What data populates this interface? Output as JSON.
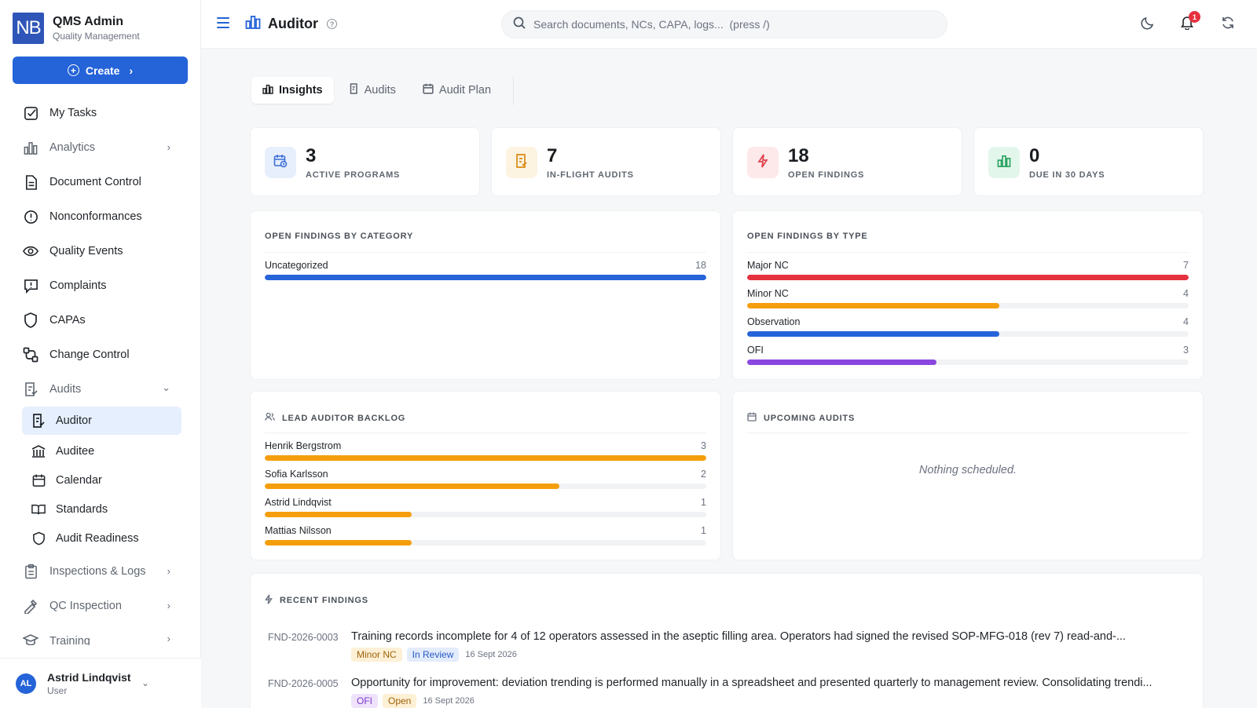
{
  "brand": {
    "logo_text": "NB",
    "title": "QMS Admin",
    "subtitle": "Quality Management"
  },
  "create_label": "Create",
  "sidebar": {
    "items": [
      {
        "label": "My Tasks"
      },
      {
        "label": "Analytics"
      },
      {
        "label": "Document Control"
      },
      {
        "label": "Nonconformances"
      },
      {
        "label": "Quality Events"
      },
      {
        "label": "Complaints"
      },
      {
        "label": "CAPAs"
      },
      {
        "label": "Change Control"
      },
      {
        "label": "Audits"
      }
    ],
    "audit_sub": [
      {
        "label": "Auditor"
      },
      {
        "label": "Auditee"
      },
      {
        "label": "Calendar"
      },
      {
        "label": "Standards"
      },
      {
        "label": "Audit Readiness"
      }
    ],
    "after_items": [
      {
        "label": "Inspections & Logs"
      },
      {
        "label": "QC Inspection"
      },
      {
        "label": "Training"
      }
    ]
  },
  "user": {
    "initials": "AL",
    "name": "Astrid Lindqvist",
    "role": "User"
  },
  "header": {
    "title": "Auditor",
    "search_placeholder": "Search documents, NCs, CAPA, logs...  (press /)",
    "notification_count": "1"
  },
  "tabs": [
    {
      "label": "Insights"
    },
    {
      "label": "Audits"
    },
    {
      "label": "Audit Plan"
    }
  ],
  "stats": [
    {
      "value": "3",
      "label": "ACTIVE PROGRAMS",
      "color": "#3b6fd8",
      "bg": "#e8effc"
    },
    {
      "value": "7",
      "label": "IN-FLIGHT AUDITS",
      "color": "#d98a12",
      "bg": "#fdf3e1"
    },
    {
      "value": "18",
      "label": "OPEN FINDINGS",
      "color": "#e0404a",
      "bg": "#fde8ea"
    },
    {
      "value": "0",
      "label": "DUE IN 30 DAYS",
      "color": "#23a15a",
      "bg": "#e3f6ec"
    }
  ],
  "by_category": {
    "title": "OPEN FINDINGS BY CATEGORY",
    "rows": [
      {
        "label": "Uncategorized",
        "value": "18",
        "fraction": 1.0,
        "color": "#2563d9"
      }
    ]
  },
  "by_type": {
    "title": "OPEN FINDINGS BY TYPE",
    "rows": [
      {
        "label": "Major NC",
        "value": "7",
        "fraction": 1.0,
        "color": "#e5323e"
      },
      {
        "label": "Minor NC",
        "value": "4",
        "fraction": 0.571,
        "color": "#f59e0b"
      },
      {
        "label": "Observation",
        "value": "4",
        "fraction": 0.571,
        "color": "#2563d9"
      },
      {
        "label": "OFI",
        "value": "3",
        "fraction": 0.429,
        "color": "#8b46e0"
      }
    ]
  },
  "backlog": {
    "title": "LEAD AUDITOR BACKLOG",
    "rows": [
      {
        "label": "Henrik Bergstrom",
        "value": "3",
        "fraction": 1.0,
        "color": "#f59e0b"
      },
      {
        "label": "Sofia Karlsson",
        "value": "2",
        "fraction": 0.667,
        "color": "#f59e0b"
      },
      {
        "label": "Astrid Lindqvist",
        "value": "1",
        "fraction": 0.333,
        "color": "#f59e0b"
      },
      {
        "label": "Mattias Nilsson",
        "value": "1",
        "fraction": 0.333,
        "color": "#f59e0b"
      }
    ]
  },
  "upcoming": {
    "title": "UPCOMING AUDITS",
    "empty": "Nothing scheduled."
  },
  "recent": {
    "title": "RECENT FINDINGS",
    "items": [
      {
        "id": "FND-2026-0003",
        "text": "Training records incomplete for 4 of 12 operators assessed in the aseptic filling area. Operators had signed the revised SOP-MFG-018 (rev 7) read-and-...",
        "type": "Minor NC",
        "status": "In Review",
        "date": "16 Sept 2026"
      },
      {
        "id": "FND-2026-0005",
        "text": "Opportunity for improvement: deviation trending is performed manually in a spreadsheet and presented quarterly to management review. Consolidating trendi...",
        "type": "OFI",
        "status": "Open",
        "date": "16 Sept 2026"
      }
    ]
  }
}
